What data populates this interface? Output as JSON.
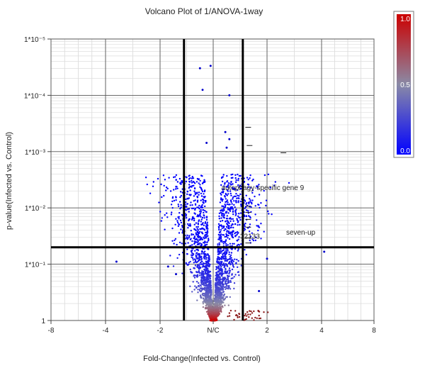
{
  "chart_data": {
    "type": "scatter",
    "title": "Volcano Plot of 1/ANOVA-1way",
    "xlabel": "Fold-Change(Infected vs. Control)",
    "ylabel": "p-value(Infected vs. Control)",
    "x_axis": {
      "range": [
        -8,
        8
      ],
      "tick_values": [
        -8,
        -4,
        -2,
        0,
        2,
        4,
        8
      ],
      "tick_labels": [
        "-8",
        "-4",
        "-2",
        "N/C",
        "2",
        "4",
        "8"
      ]
    },
    "y_axis": {
      "scale": "log",
      "range_exponent": [
        0,
        -5
      ],
      "tick_exponents": [
        -5,
        -4,
        -3,
        -2,
        -1,
        0
      ],
      "tick_labels": [
        "1*10⁻⁵",
        "1*10⁻⁴",
        "1*10⁻³",
        "1*10⁻²",
        "1*10⁻¹",
        "1"
      ]
    },
    "thresholds": {
      "fold_change": [
        -1.1,
        1.1
      ],
      "p_value": 0.05
    },
    "grid": true,
    "color_scale": {
      "min_label": "0.0",
      "mid_label": "0.5",
      "max_label": "1.0",
      "colors": [
        "#0000ff",
        "#8a8aa6",
        "#cc0000"
      ]
    },
    "annotations": [
      {
        "text": "autophagy-specific gene 9",
        "x": 0.3,
        "p": 0.0048
      },
      {
        "text": "32133",
        "x": 1.0,
        "p": 0.035
      },
      {
        "text": "seven-up",
        "x": 2.7,
        "p": 0.03
      }
    ],
    "series": [
      {
        "values": [
          {
            "x": -0.5,
            "p": 3.3e-05
          },
          {
            "x": -0.1,
            "p": 3e-05
          },
          {
            "x": -0.4,
            "p": 8e-05
          },
          {
            "x": 0.6,
            "p": 0.0001
          },
          {
            "x": 0.45,
            "p": 0.00045
          },
          {
            "x": 0.6,
            "p": 0.0006
          },
          {
            "x": 0.5,
            "p": 0.00085
          },
          {
            "x": -0.25,
            "p": 0.0007
          },
          {
            "x": -3.6,
            "p": 0.09
          },
          {
            "x": 4.2,
            "p": 0.06
          },
          {
            "x": -1.7,
            "p": 0.11
          },
          {
            "x": -1.4,
            "p": 0.15
          },
          {
            "x": 2.0,
            "p": 0.08
          },
          {
            "x": 1.7,
            "p": 0.3
          }
        ]
      }
    ],
    "marked_points": [
      {
        "x": 1.3,
        "p": 0.00037
      },
      {
        "x": 1.35,
        "p": 0.00078
      },
      {
        "x": 2.6,
        "p": 0.00105
      },
      {
        "x": 1.3,
        "p": 0.0093
      },
      {
        "x": 1.3,
        "p": 0.012
      },
      {
        "x": 1.3,
        "p": 0.016
      },
      {
        "x": 1.3,
        "p": 0.022
      },
      {
        "x": 1.3,
        "p": 0.034
      },
      {
        "x": 1.3,
        "p": 0.042
      }
    ]
  }
}
